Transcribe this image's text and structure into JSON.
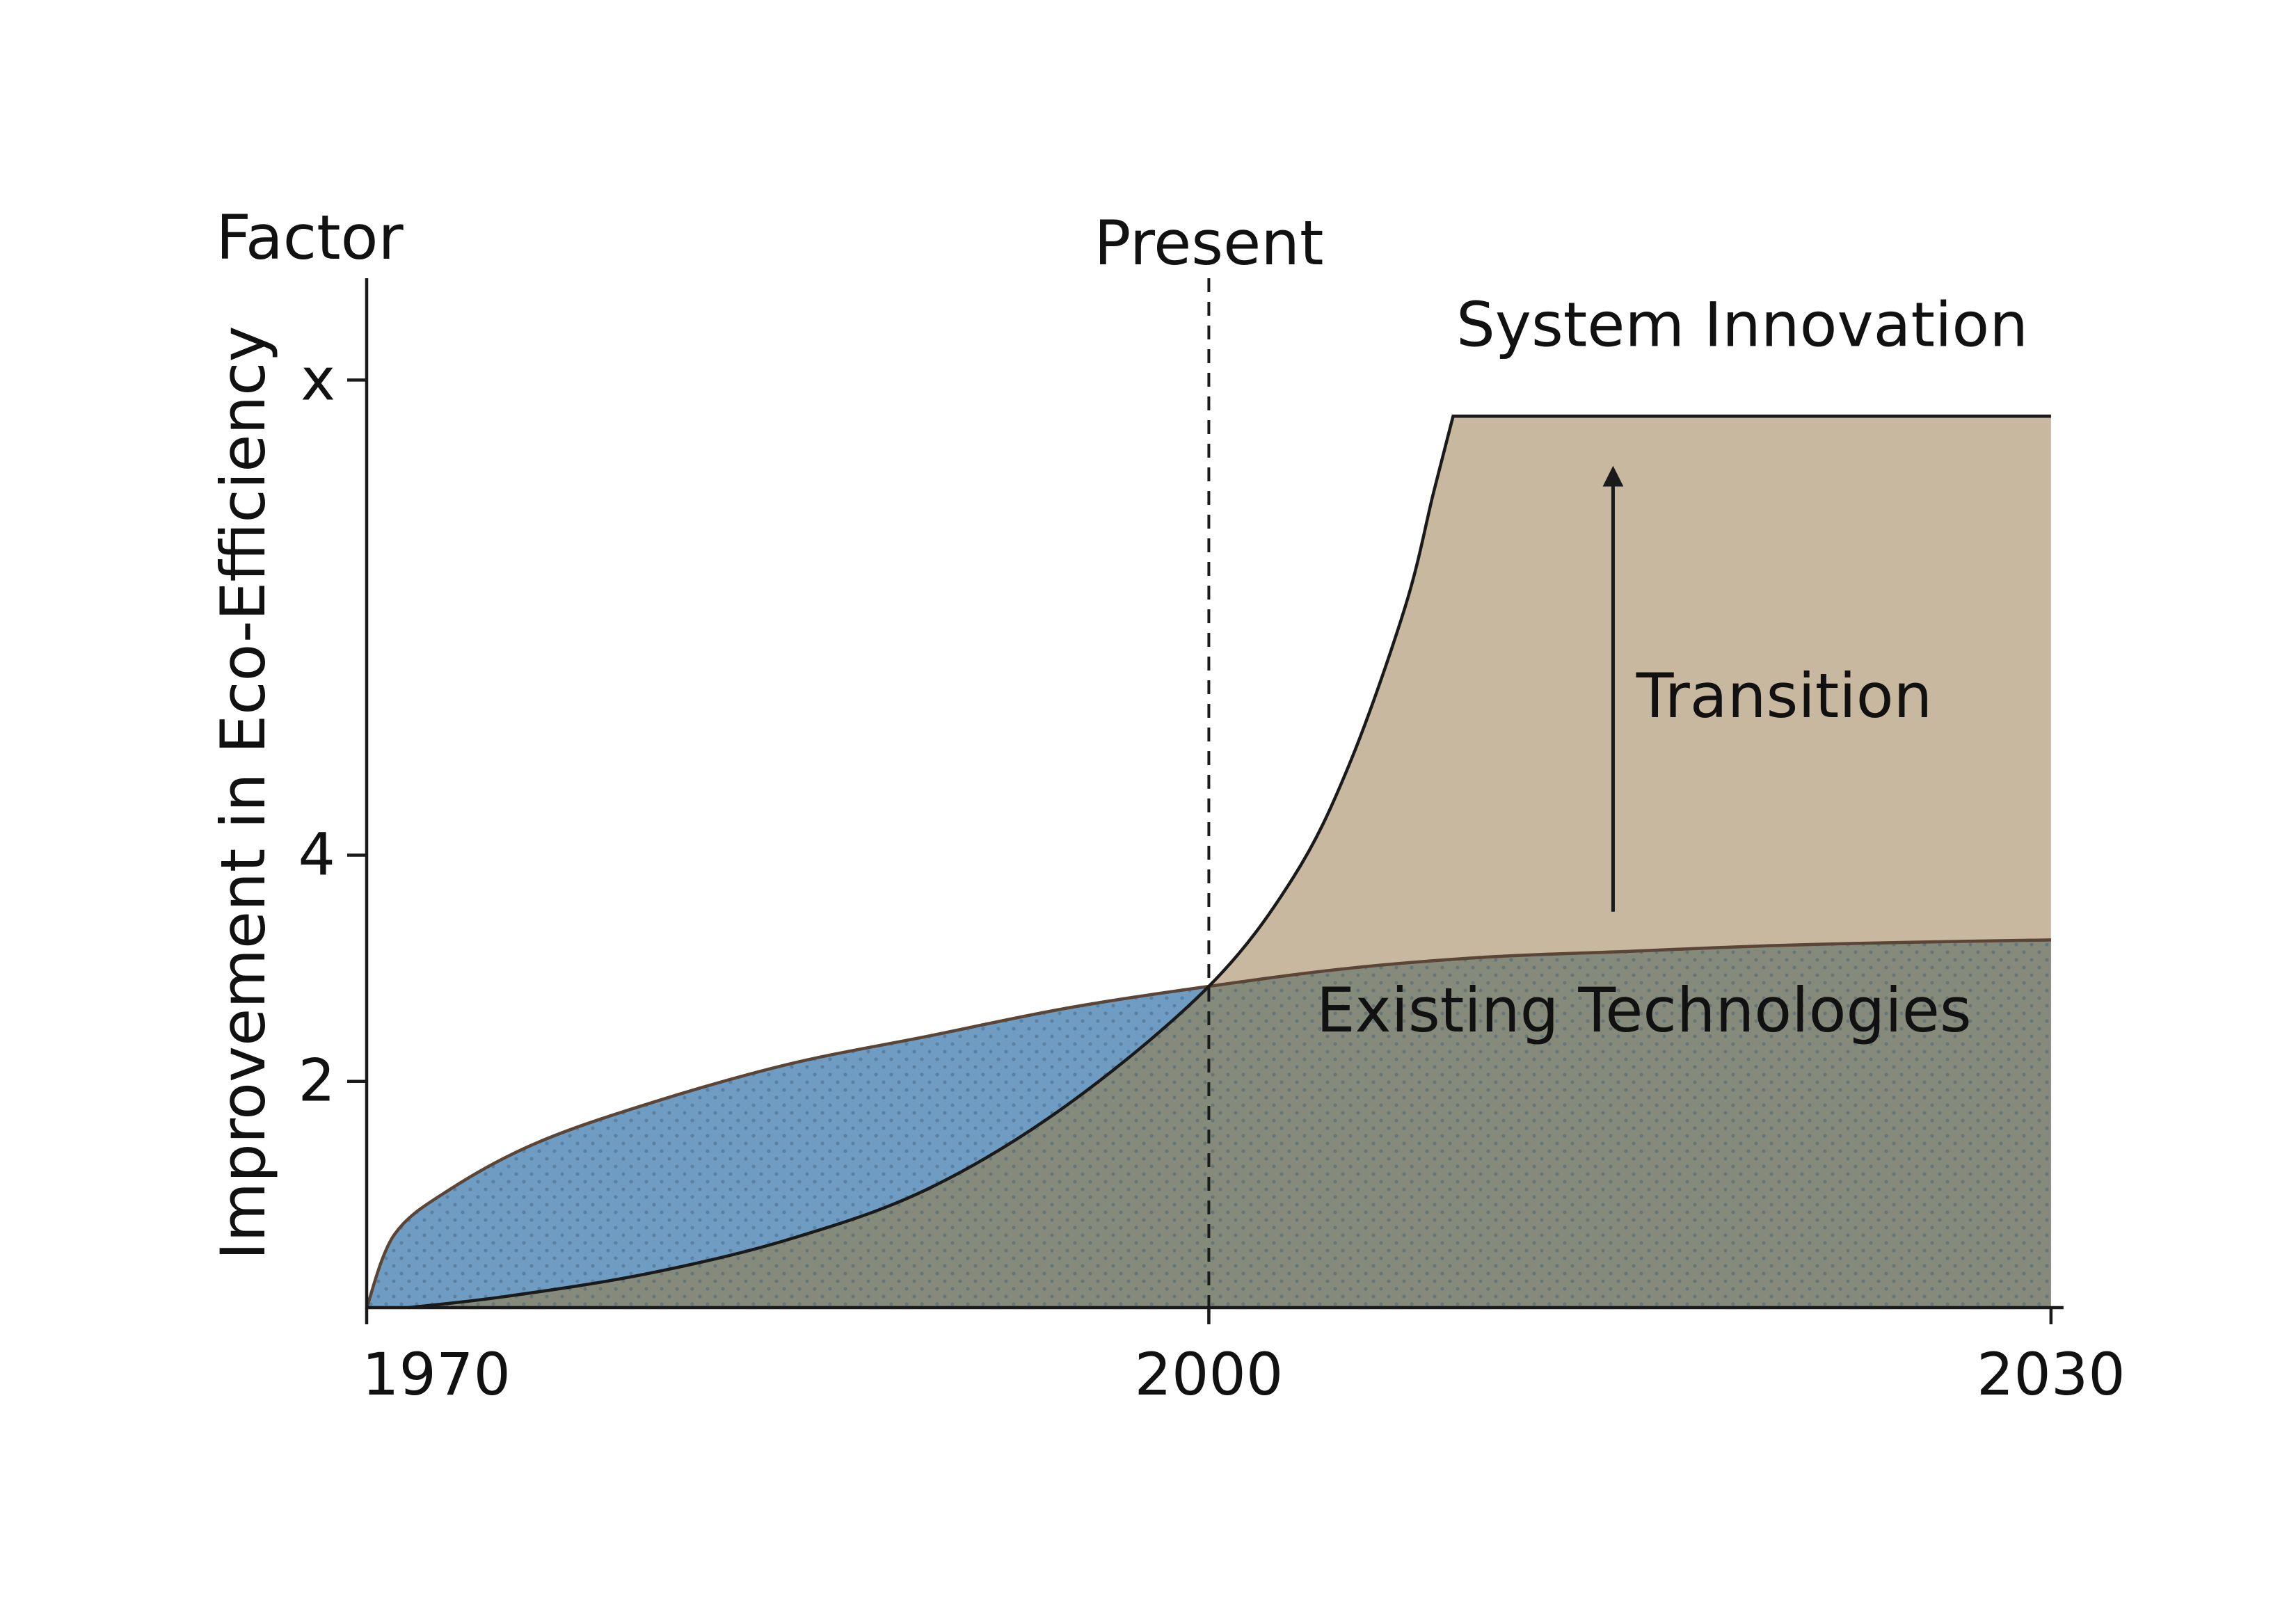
{
  "chart_data": {
    "type": "area",
    "y_axis_label": "Improvement in Eco-Efficiency",
    "y_axis_unit_label": "Factor",
    "y_ticks": [
      {
        "label": "2",
        "value": 2
      },
      {
        "label": "4",
        "value": 4
      },
      {
        "label": "x",
        "value": 8.2
      }
    ],
    "x_ticks": [
      {
        "label": "1970",
        "value": 1970
      },
      {
        "label": "2000",
        "value": 2000
      },
      {
        "label": "2030",
        "value": 2030
      }
    ],
    "xlim": [
      1970,
      2030.4
    ],
    "ylim": [
      0,
      9.1
    ],
    "present": {
      "label": "Present",
      "x": 2000
    },
    "series": [
      {
        "name": "Existing Technologies",
        "color": "#6f9cc2",
        "pattern": "dotted",
        "x": [
          1970,
          1971,
          1973,
          1976,
          1980,
          1985,
          1990,
          1995,
          2000,
          2005,
          2010,
          2015,
          2020,
          2025,
          2030
        ],
        "y": [
          0,
          0.65,
          1.05,
          1.45,
          1.8,
          2.15,
          2.4,
          2.65,
          2.84,
          3.0,
          3.1,
          3.15,
          3.2,
          3.23,
          3.25
        ]
      },
      {
        "name": "System Innovation",
        "color": "#c8b89f",
        "x": [
          1971.5,
          1975,
          1980,
          1985,
          1990,
          1995,
          2000,
          2003,
          2005,
          2007,
          2008,
          2008.7,
          2030
        ],
        "y": [
          0,
          0.1,
          0.3,
          0.6,
          1.05,
          1.8,
          2.84,
          3.8,
          4.8,
          6.2,
          7.2,
          7.88,
          7.88
        ]
      }
    ],
    "overlap_color": "#858a7b",
    "annotations": [
      {
        "text": "System Innovation",
        "x": 2019,
        "y": 8.5
      },
      {
        "text": "Transition",
        "x": 2020.5,
        "y": 5.22
      },
      {
        "text": "Existing Technologies",
        "x": 2015.5,
        "y": 2.44
      }
    ],
    "arrow": {
      "x": 2014.4,
      "y_from": 3.5,
      "y_to": 7.35
    }
  }
}
